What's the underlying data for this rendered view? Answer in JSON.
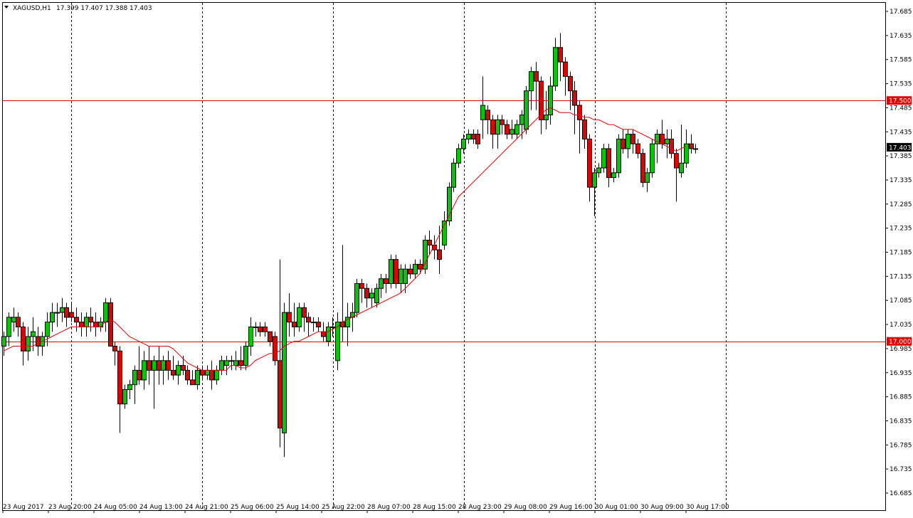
{
  "header": {
    "symbol": "XAGUSD,H1",
    "ohlc": "17.399 17.407 17.388 17.403"
  },
  "colors": {
    "background": "#ffffff",
    "grid": "#000000",
    "bull": "#00c800",
    "bear": "#e00000",
    "ma": "#e00000",
    "level_line": "#e00000",
    "current_price_bg": "#000000"
  },
  "price_labels": {
    "level_high": "17.500",
    "level_low": "17.000",
    "current": "17.403"
  },
  "chart_data": {
    "type": "candlestick",
    "title": "XAGUSD,H1",
    "ylim": [
      16.66,
      17.705
    ],
    "y_ticks": [
      "17.685",
      "17.635",
      "17.585",
      "17.535",
      "17.485",
      "17.435",
      "17.385",
      "17.335",
      "17.285",
      "17.235",
      "17.185",
      "17.135",
      "17.085",
      "17.035",
      "16.985",
      "16.935",
      "16.885",
      "16.835",
      "16.785",
      "16.735",
      "16.685"
    ],
    "x_labels": [
      "23 Aug 2017",
      "23 Aug 20:00",
      "24 Aug 05:00",
      "24 Aug 13:00",
      "24 Aug 21:00",
      "25 Aug 06:00",
      "25 Aug 14:00",
      "25 Aug 22:00",
      "28 Aug 07:00",
      "28 Aug 15:00",
      "28 Aug 23:00",
      "29 Aug 08:00",
      "29 Aug 16:00",
      "30 Aug 01:00",
      "30 Aug 09:00",
      "30 Aug 17:00"
    ],
    "grid": "vertical dashed at day separators",
    "horizontal_levels": [
      17.5,
      17.0
    ],
    "current_price": 17.403,
    "candles": [
      [
        16.99,
        17.02,
        16.97,
        17.01
      ],
      [
        17.01,
        17.06,
        16.99,
        17.05
      ],
      [
        17.04,
        17.07,
        17.02,
        17.05
      ],
      [
        17.05,
        17.06,
        17.01,
        17.03
      ],
      [
        17.03,
        17.04,
        16.95,
        16.98
      ],
      [
        16.98,
        17.03,
        16.96,
        17.01
      ],
      [
        17.01,
        17.05,
        16.98,
        17.02
      ],
      [
        17.01,
        17.03,
        16.97,
        16.99
      ],
      [
        16.99,
        17.02,
        16.97,
        17.01
      ],
      [
        17.01,
        17.06,
        16.99,
        17.04
      ],
      [
        17.04,
        17.08,
        17.02,
        17.06
      ],
      [
        17.06,
        17.08,
        17.03,
        17.06
      ],
      [
        17.06,
        17.09,
        17.04,
        17.07
      ],
      [
        17.07,
        17.08,
        17.03,
        17.05
      ],
      [
        17.06,
        17.08,
        17.04,
        17.05
      ],
      [
        17.05,
        17.07,
        17.02,
        17.04
      ],
      [
        17.04,
        17.06,
        17.01,
        17.03
      ],
      [
        17.03,
        17.06,
        17.01,
        17.05
      ],
      [
        17.05,
        17.07,
        17.02,
        17.04
      ],
      [
        17.04,
        17.06,
        17.01,
        17.03
      ],
      [
        17.03,
        17.05,
        17.02,
        17.04
      ],
      [
        17.04,
        17.09,
        17.02,
        17.08
      ],
      [
        17.08,
        17.09,
        16.99,
        16.99
      ],
      [
        16.99,
        17.0,
        16.95,
        16.98
      ],
      [
        16.98,
        16.99,
        16.81,
        16.87
      ],
      [
        16.87,
        16.91,
        16.86,
        16.9
      ],
      [
        16.9,
        16.92,
        16.88,
        16.91
      ],
      [
        16.91,
        16.95,
        16.87,
        16.94
      ],
      [
        16.94,
        16.99,
        16.91,
        16.92
      ],
      [
        16.92,
        16.98,
        16.9,
        16.96
      ],
      [
        16.96,
        16.99,
        16.91,
        16.94
      ],
      [
        16.94,
        16.97,
        16.86,
        16.96
      ],
      [
        16.96,
        16.99,
        16.91,
        16.94
      ],
      [
        16.94,
        16.97,
        16.91,
        16.96
      ],
      [
        16.96,
        16.98,
        16.92,
        16.94
      ],
      [
        16.94,
        16.97,
        16.92,
        16.93
      ],
      [
        16.93,
        16.96,
        16.91,
        16.95
      ],
      [
        16.95,
        16.97,
        16.93,
        16.94
      ],
      [
        16.94,
        16.95,
        16.91,
        16.92
      ],
      [
        16.92,
        16.94,
        16.91,
        16.91
      ],
      [
        16.91,
        16.95,
        16.9,
        16.94
      ],
      [
        16.94,
        16.95,
        16.92,
        16.93
      ],
      [
        16.93,
        16.95,
        16.92,
        16.94
      ],
      [
        16.94,
        16.96,
        16.9,
        16.92
      ],
      [
        16.92,
        16.95,
        16.91,
        16.94
      ],
      [
        16.94,
        16.97,
        16.93,
        16.96
      ],
      [
        16.95,
        16.97,
        16.93,
        16.96
      ],
      [
        16.96,
        16.97,
        16.94,
        16.96
      ],
      [
        16.95,
        16.98,
        16.94,
        16.96
      ],
      [
        16.96,
        16.99,
        16.94,
        16.95
      ],
      [
        16.95,
        17.0,
        16.94,
        16.99
      ],
      [
        16.99,
        17.05,
        16.97,
        17.03
      ],
      [
        17.03,
        17.04,
        17.01,
        17.03
      ],
      [
        17.03,
        17.04,
        17.01,
        17.02
      ],
      [
        17.03,
        17.04,
        17.01,
        17.02
      ],
      [
        17.02,
        17.02,
        16.99,
        17.0
      ],
      [
        17.01,
        17.02,
        16.95,
        16.96
      ],
      [
        16.96,
        17.17,
        16.78,
        16.82
      ],
      [
        16.81,
        17.08,
        16.76,
        17.06
      ],
      [
        17.06,
        17.1,
        17.01,
        17.04
      ],
      [
        17.04,
        17.08,
        17.01,
        17.03
      ],
      [
        17.03,
        17.08,
        17.02,
        17.07
      ],
      [
        17.07,
        17.08,
        17.02,
        17.05
      ],
      [
        17.05,
        17.06,
        17.01,
        17.04
      ],
      [
        17.04,
        17.05,
        17.02,
        17.04
      ],
      [
        17.04,
        17.05,
        17.02,
        17.03
      ],
      [
        17.02,
        17.04,
        17.0,
        17.01
      ],
      [
        17.0,
        17.04,
        16.99,
        17.03
      ],
      [
        17.03,
        17.05,
        17.01,
        17.03
      ],
      [
        16.96,
        17.06,
        16.94,
        17.04
      ],
      [
        17.04,
        17.2,
        17.0,
        17.03
      ],
      [
        17.03,
        17.08,
        16.99,
        17.05
      ],
      [
        17.05,
        17.08,
        17.02,
        17.06
      ],
      [
        17.06,
        17.13,
        17.05,
        17.12
      ],
      [
        17.12,
        17.13,
        17.08,
        17.11
      ],
      [
        17.11,
        17.12,
        17.07,
        17.09
      ],
      [
        17.09,
        17.11,
        17.07,
        17.1
      ],
      [
        17.08,
        17.12,
        17.07,
        17.11
      ],
      [
        17.11,
        17.14,
        17.09,
        17.13
      ],
      [
        17.13,
        17.14,
        17.1,
        17.12
      ],
      [
        17.12,
        17.18,
        17.11,
        17.17
      ],
      [
        17.17,
        17.18,
        17.11,
        17.12
      ],
      [
        17.12,
        17.16,
        17.1,
        17.15
      ],
      [
        17.12,
        17.16,
        17.1,
        17.15
      ],
      [
        17.15,
        17.16,
        17.13,
        17.14
      ],
      [
        17.14,
        17.17,
        17.13,
        17.16
      ],
      [
        17.16,
        17.17,
        17.14,
        17.15
      ],
      [
        17.15,
        17.22,
        17.14,
        17.21
      ],
      [
        17.21,
        17.23,
        17.18,
        17.2
      ],
      [
        17.2,
        17.22,
        17.17,
        17.19
      ],
      [
        17.19,
        17.24,
        17.14,
        17.17
      ],
      [
        17.2,
        17.27,
        17.19,
        17.25
      ],
      [
        17.25,
        17.33,
        17.24,
        17.32
      ],
      [
        17.32,
        17.38,
        17.31,
        17.37
      ],
      [
        17.37,
        17.41,
        17.36,
        17.4
      ],
      [
        17.4,
        17.43,
        17.39,
        17.42
      ],
      [
        17.42,
        17.44,
        17.41,
        17.43
      ],
      [
        17.43,
        17.44,
        17.41,
        17.42
      ],
      [
        17.43,
        17.44,
        17.4,
        17.41
      ],
      [
        17.46,
        17.55,
        17.42,
        17.49
      ],
      [
        17.48,
        17.49,
        17.43,
        17.46
      ],
      [
        17.46,
        17.47,
        17.4,
        17.43
      ],
      [
        17.43,
        17.47,
        17.4,
        17.46
      ],
      [
        17.46,
        17.47,
        17.43,
        17.45
      ],
      [
        17.45,
        17.46,
        17.42,
        17.43
      ],
      [
        17.43,
        17.46,
        17.42,
        17.44
      ],
      [
        17.43,
        17.46,
        17.42,
        17.45
      ],
      [
        17.45,
        17.48,
        17.42,
        17.47
      ],
      [
        17.44,
        17.53,
        17.43,
        17.52
      ],
      [
        17.52,
        17.57,
        17.48,
        17.56
      ],
      [
        17.56,
        17.58,
        17.48,
        17.54
      ],
      [
        17.54,
        17.55,
        17.43,
        17.46
      ],
      [
        17.46,
        17.52,
        17.44,
        17.47
      ],
      [
        17.47,
        17.55,
        17.45,
        17.53
      ],
      [
        17.53,
        17.63,
        17.52,
        17.61
      ],
      [
        17.61,
        17.64,
        17.54,
        17.58
      ],
      [
        17.58,
        17.59,
        17.51,
        17.55
      ],
      [
        17.55,
        17.56,
        17.48,
        17.52
      ],
      [
        17.52,
        17.54,
        17.43,
        17.49
      ],
      [
        17.49,
        17.5,
        17.39,
        17.46
      ],
      [
        17.46,
        17.47,
        17.4,
        17.42
      ],
      [
        17.42,
        17.43,
        17.29,
        17.32
      ],
      [
        17.32,
        17.36,
        17.26,
        17.35
      ],
      [
        17.35,
        17.37,
        17.34,
        17.36
      ],
      [
        17.36,
        17.41,
        17.35,
        17.4
      ],
      [
        17.4,
        17.41,
        17.32,
        17.34
      ],
      [
        17.34,
        17.36,
        17.33,
        17.35
      ],
      [
        17.35,
        17.43,
        17.34,
        17.42
      ],
      [
        17.42,
        17.44,
        17.39,
        17.4
      ],
      [
        17.4,
        17.44,
        17.38,
        17.43
      ],
      [
        17.43,
        17.44,
        17.39,
        17.41
      ],
      [
        17.41,
        17.42,
        17.38,
        17.39
      ],
      [
        17.39,
        17.4,
        17.32,
        17.33
      ],
      [
        17.33,
        17.36,
        17.31,
        17.35
      ],
      [
        17.35,
        17.42,
        17.34,
        17.41
      ],
      [
        17.41,
        17.44,
        17.37,
        17.43
      ],
      [
        17.43,
        17.46,
        17.4,
        17.41
      ],
      [
        17.41,
        17.44,
        17.38,
        17.42
      ],
      [
        17.42,
        17.44,
        17.38,
        17.39
      ],
      [
        17.39,
        17.4,
        17.29,
        17.36
      ],
      [
        17.35,
        17.45,
        17.34,
        17.37
      ],
      [
        17.37,
        17.44,
        17.36,
        17.41
      ],
      [
        17.41,
        17.43,
        17.39,
        17.4
      ],
      [
        17.4,
        17.41,
        17.39,
        17.4
      ]
    ],
    "ma_series": [
      16.98,
      16.985,
      16.99,
      16.99,
      16.99,
      16.99,
      16.99,
      16.995,
      17.0,
      17.005,
      17.01,
      17.015,
      17.02,
      17.025,
      17.03,
      17.03,
      17.03,
      17.03,
      17.03,
      17.03,
      17.03,
      17.04,
      17.045,
      17.04,
      17.03,
      17.02,
      17.01,
      17.005,
      17.0,
      16.995,
      16.99,
      16.99,
      16.99,
      16.99,
      16.99,
      16.985,
      16.975,
      16.965,
      16.955,
      16.95,
      16.945,
      16.94,
      16.94,
      16.94,
      16.94,
      16.94,
      16.94,
      16.95,
      16.95,
      16.945,
      16.945,
      16.95,
      16.96,
      16.965,
      16.97,
      16.975,
      16.975,
      16.98,
      16.99,
      16.995,
      17.0,
      17.0,
      17.005,
      17.01,
      17.015,
      17.02,
      17.02,
      17.02,
      17.025,
      17.03,
      17.04,
      17.045,
      17.05,
      17.055,
      17.06,
      17.065,
      17.07,
      17.075,
      17.08,
      17.085,
      17.09,
      17.095,
      17.1,
      17.11,
      17.12,
      17.13,
      17.14,
      17.16,
      17.18,
      17.2,
      17.22,
      17.24,
      17.26,
      17.28,
      17.3,
      17.31,
      17.32,
      17.33,
      17.34,
      17.35,
      17.36,
      17.37,
      17.38,
      17.39,
      17.4,
      17.41,
      17.42,
      17.43,
      17.44,
      17.45,
      17.46,
      17.47,
      17.48,
      17.485,
      17.48,
      17.475,
      17.475,
      17.475,
      17.47,
      17.47,
      17.465,
      17.465,
      17.46,
      17.46,
      17.455,
      17.45,
      17.45,
      17.445,
      17.44,
      17.44,
      17.44,
      17.435,
      17.43,
      17.425,
      17.42,
      17.415,
      17.41,
      17.405,
      17.4,
      17.395,
      17.4,
      17.405
    ]
  }
}
